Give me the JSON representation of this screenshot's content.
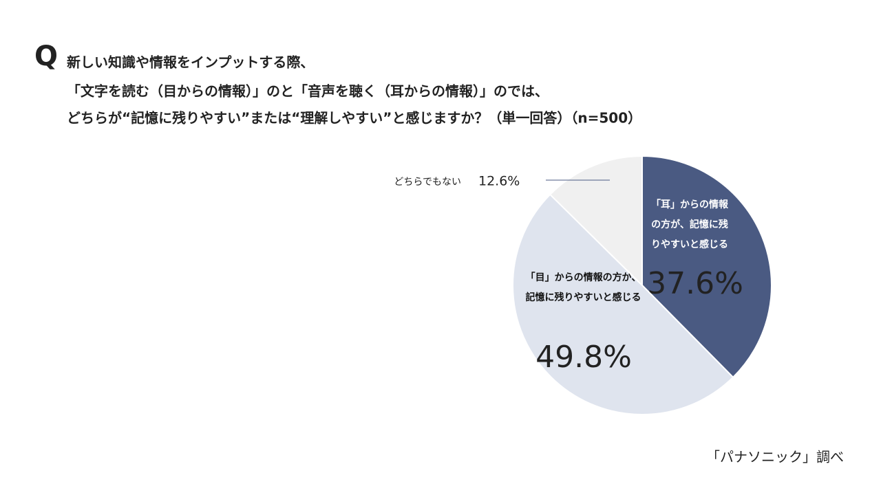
{
  "chart_data": {
    "type": "pie",
    "question_mark": "Q",
    "title": [
      "新しい知識や情報をインプットする際、",
      "「文字を読む（目からの情報）」のと「音声を聴く（耳からの情報）」のでは、",
      "どちらが“記憶に残りやすい”または“理解しやすい”と感じますか？（単一回答）（n=500）"
    ],
    "categories": [
      "「耳」からの情報の方が、記憶に残りやすいと感じる",
      "「目」からの情報の方が、記憶に残りやすいと感じる",
      "どちらでもない"
    ],
    "values": [
      37.6,
      49.8,
      12.6
    ],
    "value_labels": [
      "37.6%",
      "49.8%",
      "12.6%"
    ],
    "colors": [
      "#4a5a82",
      "#dfe4ee",
      "#f0f0f0"
    ],
    "source": "「パナソニック」調べ"
  }
}
